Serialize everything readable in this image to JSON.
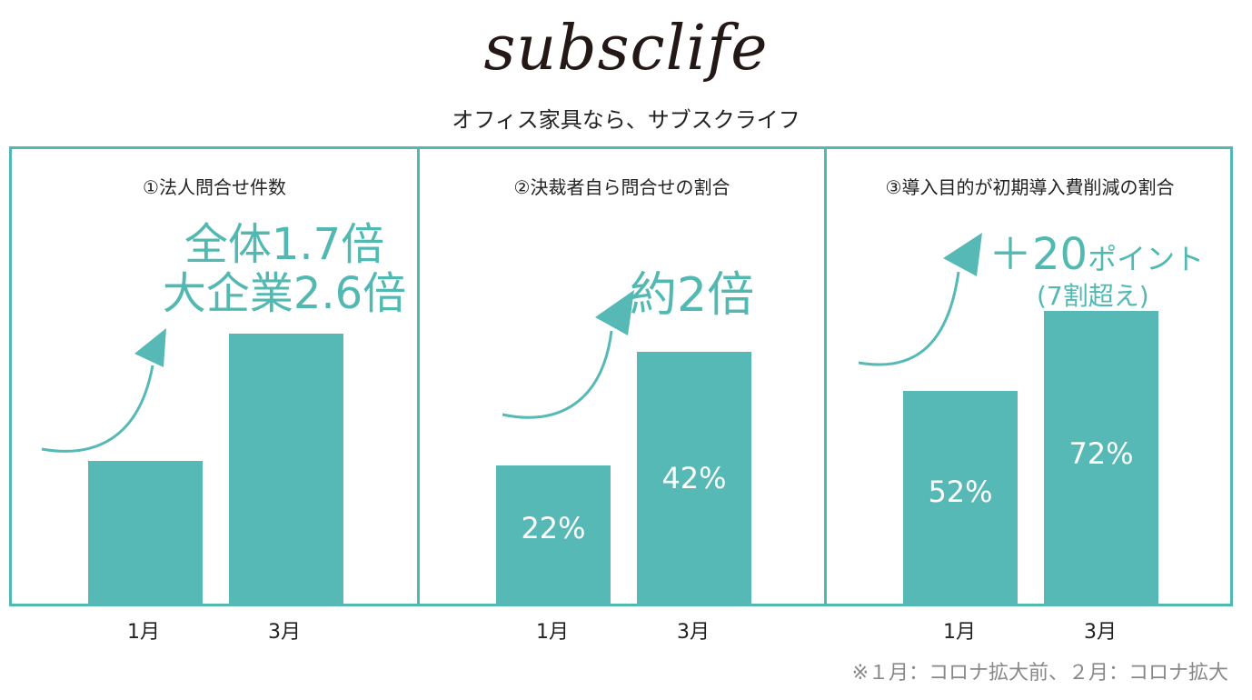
{
  "brand": {
    "logo_text": "subsclife",
    "tagline": "オフィス家具なら、サブスクライフ"
  },
  "colors": {
    "accent": "#56b9b5",
    "border": "#52b8b2",
    "text": "#222222",
    "footnote": "#888888"
  },
  "panels": [
    {
      "title": "①法人問合せ件数",
      "callout_line1": "全体1.7倍",
      "callout_line2": "大企業2.6倍",
      "bar1_label": "",
      "bar2_label": ""
    },
    {
      "title": "②決裁者自ら問合せの割合",
      "callout_line1": "約2倍",
      "callout_line2": "",
      "bar1_label": "22%",
      "bar2_label": "42%"
    },
    {
      "title": "③導入目的が初期導入費削減の割合",
      "callout_line1": "＋20",
      "callout_suffix": "ポイント",
      "callout_line2": "(7割超え)",
      "bar1_label": "52%",
      "bar2_label": "72%"
    }
  ],
  "footnote": "※１月：コロナ拡大前、２月：コロナ拡大",
  "chart_data": [
    {
      "type": "bar",
      "title": "①法人問合せ件数",
      "categories": [
        "1月",
        "3月"
      ],
      "values": [
        1,
        1.7
      ],
      "annotations": [
        "全体1.7倍",
        "大企業2.6倍"
      ]
    },
    {
      "type": "bar",
      "title": "②決裁者自ら問合せの割合",
      "categories": [
        "1月",
        "3月"
      ],
      "values": [
        22,
        42
      ],
      "ylim": [
        0,
        100
      ],
      "annotations": [
        "約2倍"
      ]
    },
    {
      "type": "bar",
      "title": "③導入目的が初期導入費削減の割合",
      "categories": [
        "1月",
        "3月"
      ],
      "values": [
        52,
        72
      ],
      "ylim": [
        0,
        100
      ],
      "annotations": [
        "＋20ポイント",
        "(7割超え)"
      ]
    }
  ]
}
